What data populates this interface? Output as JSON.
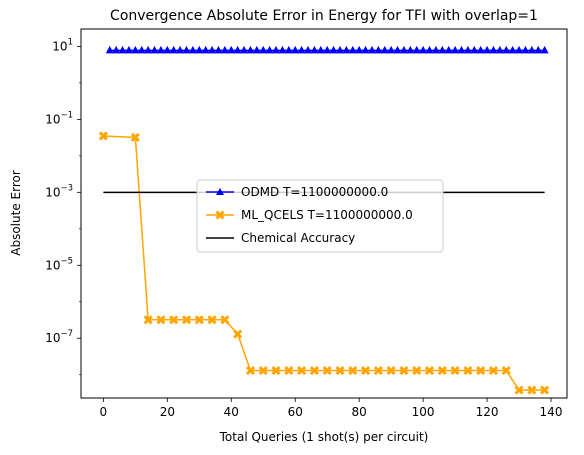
{
  "chart_data": {
    "type": "line",
    "title": "Convergence Absolute Error in Energy for TFI with overlap=1",
    "xlabel": "Total Queries (1 shot(s) per circuit)",
    "ylabel": "Absolute Error",
    "y_scale": "log",
    "xlim": [
      -7,
      145
    ],
    "ylim": [
      2.3e-09,
      30
    ],
    "grid": false,
    "legend_position": "center",
    "x_ticks": [
      0,
      20,
      40,
      60,
      80,
      100,
      120,
      140
    ],
    "x_tick_labels": [
      "0",
      "20",
      "40",
      "60",
      "80",
      "100",
      "120",
      "140"
    ],
    "y_ticks": [
      10,
      0.1,
      0.001,
      1e-05,
      1e-07
    ],
    "y_tick_labels": [
      {
        "base": "10",
        "exp": "1"
      },
      {
        "base": "10",
        "exp": "−1"
      },
      {
        "base": "10",
        "exp": "−3"
      },
      {
        "base": "10",
        "exp": "−5"
      },
      {
        "base": "10",
        "exp": "−7"
      }
    ],
    "series": [
      {
        "name": "ODMD T=1100000000.0",
        "color": "#0000ff",
        "marker": "triangle",
        "x": [
          2,
          4,
          6,
          8,
          10,
          12,
          14,
          16,
          18,
          20,
          22,
          24,
          26,
          28,
          30,
          32,
          34,
          36,
          38,
          40,
          42,
          44,
          46,
          48,
          50,
          52,
          54,
          56,
          58,
          60,
          62,
          64,
          66,
          68,
          70,
          72,
          74,
          76,
          78,
          80,
          82,
          84,
          86,
          88,
          90,
          92,
          94,
          96,
          98,
          100,
          102,
          104,
          106,
          108,
          110,
          112,
          114,
          116,
          118,
          120,
          122,
          124,
          126,
          128,
          130,
          132,
          134,
          136,
          138
        ],
        "values": [
          7.8,
          7.8,
          7.8,
          7.8,
          7.8,
          7.8,
          7.8,
          7.8,
          7.8,
          7.8,
          7.8,
          7.8,
          7.8,
          7.8,
          7.8,
          7.8,
          7.8,
          7.8,
          7.8,
          7.8,
          7.8,
          7.8,
          7.8,
          7.8,
          7.8,
          7.8,
          7.8,
          7.8,
          7.8,
          7.8,
          7.8,
          7.8,
          7.8,
          7.8,
          7.8,
          7.8,
          7.8,
          7.8,
          7.8,
          7.8,
          7.8,
          7.8,
          7.8,
          7.8,
          7.8,
          7.8,
          7.8,
          7.8,
          7.8,
          7.8,
          7.8,
          7.8,
          7.8,
          7.8,
          7.8,
          7.8,
          7.8,
          7.8,
          7.8,
          7.8,
          7.8,
          7.8,
          7.8,
          7.8,
          7.8,
          7.8,
          7.8,
          7.8,
          7.8
        ]
      },
      {
        "name": "ML_QCELS T=1100000000.0",
        "color": "#ffa500",
        "marker": "x",
        "x": [
          0,
          10,
          14,
          18,
          22,
          26,
          30,
          34,
          38,
          42,
          46,
          50,
          54,
          58,
          62,
          66,
          70,
          74,
          78,
          82,
          86,
          90,
          94,
          98,
          102,
          106,
          110,
          114,
          118,
          122,
          126,
          130,
          134,
          138
        ],
        "values": [
          0.035,
          0.032,
          3.2e-07,
          3.2e-07,
          3.2e-07,
          3.2e-07,
          3.2e-07,
          3.2e-07,
          3.2e-07,
          1.3e-07,
          1.3e-08,
          1.3e-08,
          1.3e-08,
          1.3e-08,
          1.3e-08,
          1.3e-08,
          1.3e-08,
          1.3e-08,
          1.3e-08,
          1.3e-08,
          1.3e-08,
          1.3e-08,
          1.3e-08,
          1.3e-08,
          1.3e-08,
          1.3e-08,
          1.3e-08,
          1.3e-08,
          1.3e-08,
          1.3e-08,
          1.3e-08,
          3.8e-09,
          3.8e-09,
          3.8e-09
        ]
      },
      {
        "name": "Chemical Accuracy",
        "color": "#000000",
        "marker": "none",
        "x": [
          0,
          138
        ],
        "values": [
          0.001,
          0.001
        ]
      }
    ]
  }
}
